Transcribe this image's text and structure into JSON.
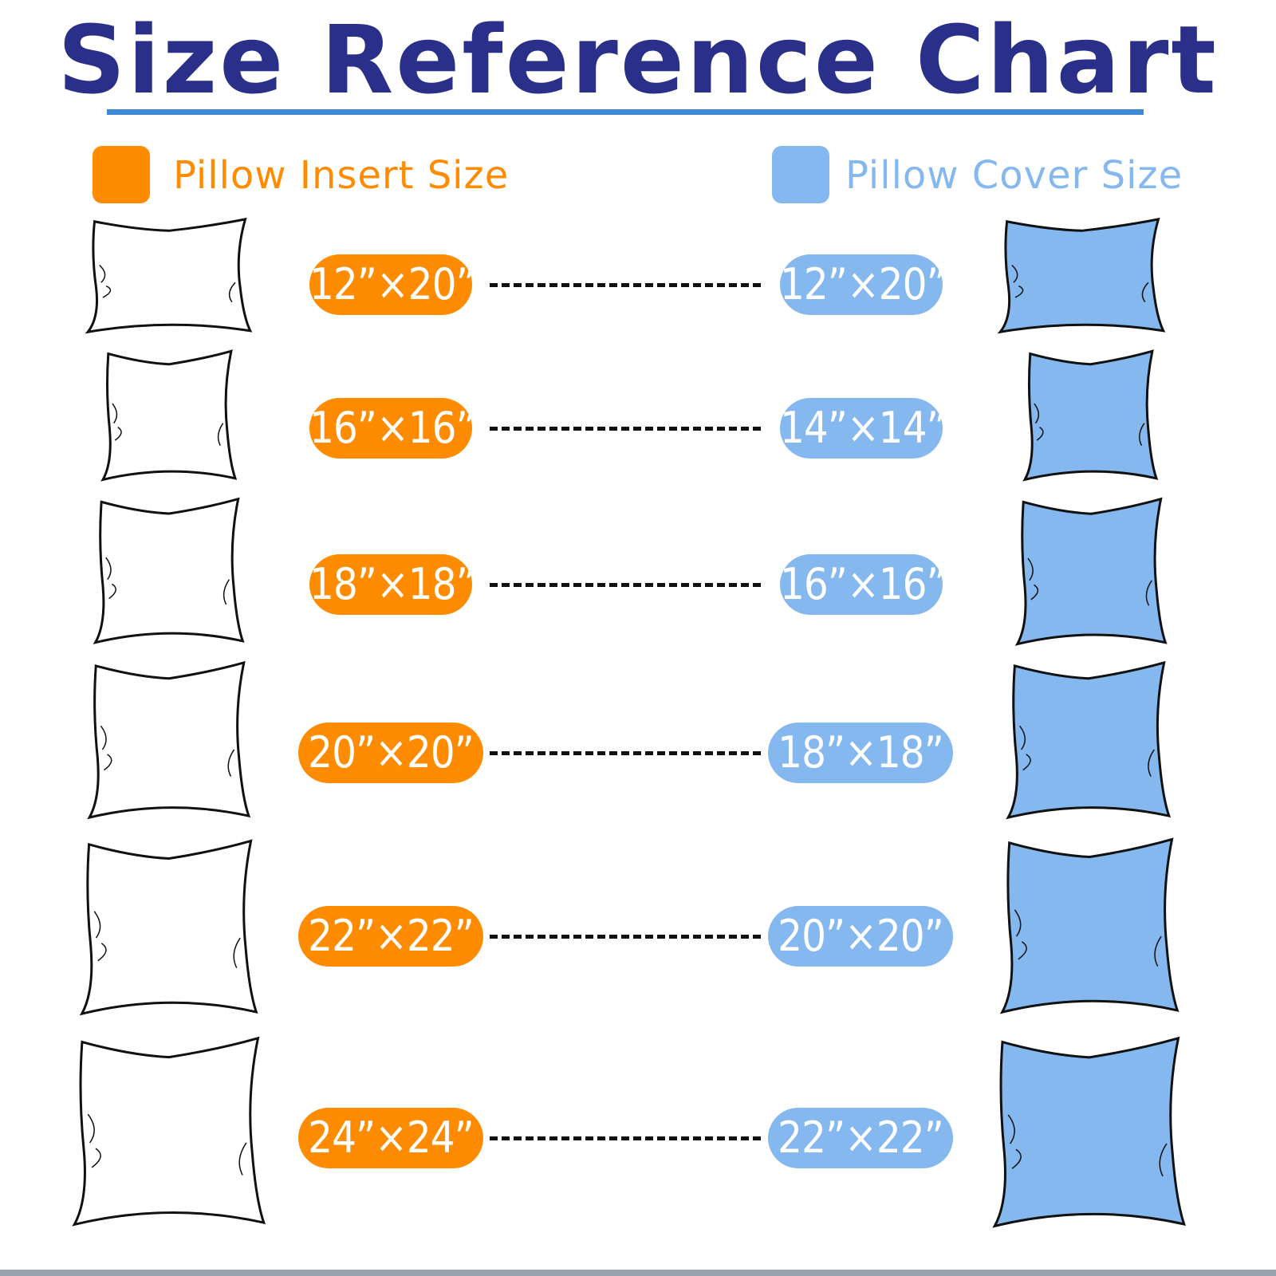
{
  "title": "Size Reference Chart",
  "colors": {
    "title": "#2a2f8a",
    "underline": "#3c88d2",
    "insert": "#ff8c00",
    "cover": "#85b8ef"
  },
  "legend": {
    "insert_label": "Pillow Insert Size",
    "cover_label": "Pillow Cover Size"
  },
  "rows": [
    {
      "insert": "12”×20”",
      "cover": "12”×20”"
    },
    {
      "insert": "16”×16”",
      "cover": "14”×14”"
    },
    {
      "insert": "18”×18”",
      "cover": "16”×16”"
    },
    {
      "insert": "20”×20”",
      "cover": "18”×18”"
    },
    {
      "insert": "22”×22”",
      "cover": "20”×20”"
    },
    {
      "insert": "24”×24”",
      "cover": "22”×22”"
    }
  ]
}
